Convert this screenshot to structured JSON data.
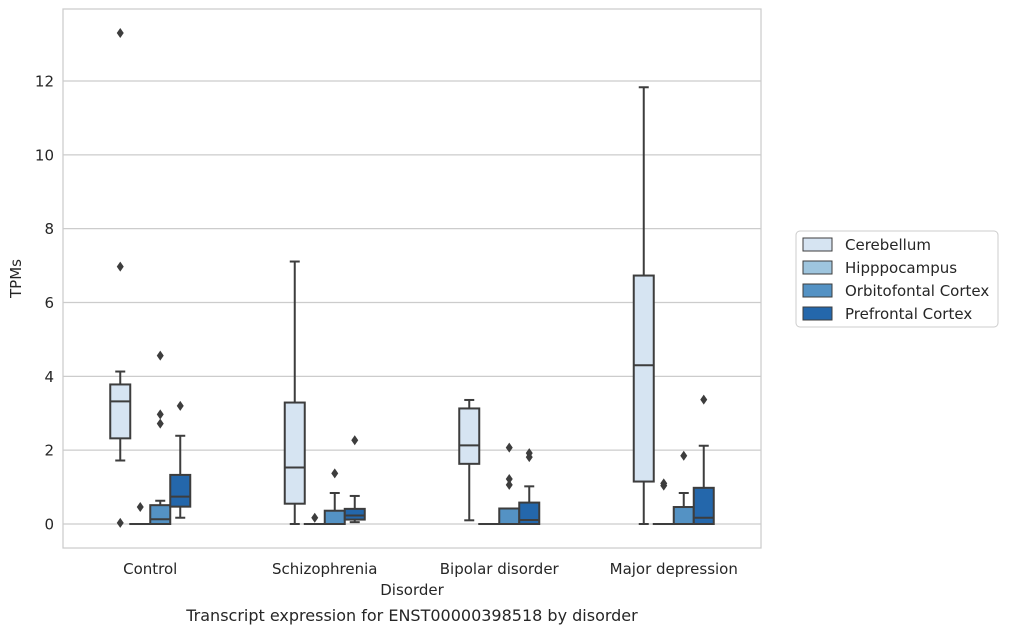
{
  "caption": "Transcript expression for ENST00000398518 by disorder",
  "chart_data": {
    "type": "box",
    "xlabel": "Disorder",
    "ylabel": "TPMs",
    "ylim": [
      -0.65,
      13.95
    ],
    "yticks": [
      0,
      2,
      4,
      6,
      8,
      10,
      12
    ],
    "grid": true,
    "legend_position": "right",
    "categories": [
      "Control",
      "Schizophrenia",
      "Bipolar disorder",
      "Major depression"
    ],
    "series": [
      {
        "name": "Cerebellum",
        "color": "#d6e4f2",
        "boxes": [
          {
            "whislo": 1.72,
            "q1": 2.32,
            "med": 3.32,
            "q3": 3.78,
            "whishi": 4.13,
            "fliers": [
              13.3,
              6.97,
              0.03
            ]
          },
          {
            "whislo": 0.0,
            "q1": 0.55,
            "med": 1.53,
            "q3": 3.29,
            "whishi": 7.11,
            "fliers": []
          },
          {
            "whislo": 0.1,
            "q1": 1.63,
            "med": 2.13,
            "q3": 3.13,
            "whishi": 3.36,
            "fliers": []
          },
          {
            "whislo": 0.0,
            "q1": 1.15,
            "med": 4.3,
            "q3": 6.73,
            "whishi": 11.83,
            "fliers": []
          }
        ]
      },
      {
        "name": "Hipppocampus",
        "color": "#9ec5de",
        "boxes": [
          {
            "whislo": 0.0,
            "q1": 0.0,
            "med": 0.0,
            "q3": 0.0,
            "whishi": 0.0,
            "fliers": [
              0.46
            ]
          },
          {
            "whislo": 0.0,
            "q1": 0.0,
            "med": 0.0,
            "q3": 0.0,
            "whishi": 0.0,
            "fliers": [
              0.17
            ]
          },
          {
            "whislo": 0.0,
            "q1": 0.0,
            "med": 0.0,
            "q3": 0.0,
            "whishi": 0.0,
            "fliers": []
          },
          {
            "whislo": 0.0,
            "q1": 0.0,
            "med": 0.0,
            "q3": 0.0,
            "whishi": 0.0,
            "fliers": [
              1.04,
              1.1
            ]
          }
        ]
      },
      {
        "name": "Orbitofontal Cortex",
        "color": "#5492c4",
        "boxes": [
          {
            "whislo": 0.0,
            "q1": 0.0,
            "med": 0.13,
            "q3": 0.51,
            "whishi": 0.63,
            "fliers": [
              4.56,
              2.97,
              2.72
            ]
          },
          {
            "whislo": 0.0,
            "q1": 0.0,
            "med": 0.0,
            "q3": 0.36,
            "whishi": 0.84,
            "fliers": [
              1.37
            ]
          },
          {
            "whislo": 0.0,
            "q1": 0.0,
            "med": 0.0,
            "q3": 0.42,
            "whishi": 0.42,
            "fliers": [
              2.07,
              1.22,
              1.06
            ]
          },
          {
            "whislo": 0.0,
            "q1": 0.0,
            "med": 0.0,
            "q3": 0.46,
            "whishi": 0.84,
            "fliers": [
              1.85
            ]
          }
        ]
      },
      {
        "name": "Prefrontal Cortex",
        "color": "#2467ab",
        "boxes": [
          {
            "whislo": 0.17,
            "q1": 0.47,
            "med": 0.74,
            "q3": 1.33,
            "whishi": 2.39,
            "fliers": [
              3.2
            ]
          },
          {
            "whislo": 0.05,
            "q1": 0.12,
            "med": 0.23,
            "q3": 0.41,
            "whishi": 0.76,
            "fliers": [
              2.27
            ]
          },
          {
            "whislo": 0.0,
            "q1": 0.0,
            "med": 0.11,
            "q3": 0.58,
            "whishi": 1.02,
            "fliers": [
              1.92,
              1.81
            ]
          },
          {
            "whislo": 0.0,
            "q1": 0.0,
            "med": 0.17,
            "q3": 0.98,
            "whishi": 2.12,
            "fliers": [
              3.37
            ]
          }
        ]
      }
    ]
  }
}
